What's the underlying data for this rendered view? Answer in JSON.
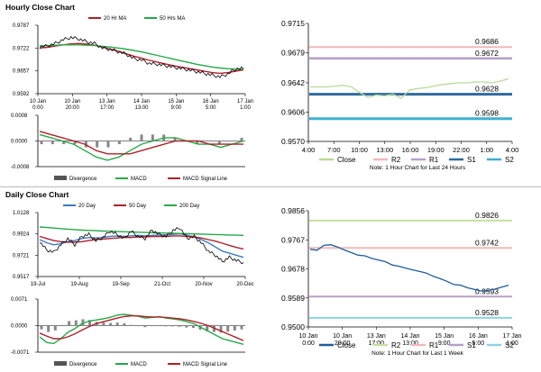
{
  "sections": {
    "hourly_title": "Hourly Close Chart",
    "daily_title": "Daily Close Chart"
  },
  "colors": {
    "close": "#b9d99a",
    "close_daily": "#1f5e9c",
    "ma20": "#b0202a",
    "ma50": "#27a84a",
    "ma200": "#27a84a",
    "ma20_daily": "#3f78c0",
    "r2": "#f2b8b8",
    "r1": "#b8a0c8",
    "s1": "#2f6aa0",
    "s2": "#3fb0d0",
    "r2_daily": "#c8e0a0",
    "r1_daily": "#f2b8b8",
    "s1_daily": "#b8a0c8",
    "s2_daily": "#8fd0e8",
    "macd": "#27a84a",
    "signal": "#b0202a",
    "divergence": "#888888"
  },
  "chart_data": [
    {
      "id": "hourly_price_ma",
      "type": "line",
      "legend": [
        "20 Hr MA",
        "50 Hrs MA"
      ],
      "y_ticks": [
        "0.9787",
        "0.9722",
        "0.9657",
        "0.9592"
      ],
      "ylim": [
        0.9592,
        0.9787
      ],
      "x_labels": [
        "10 Jan\n0:00",
        "10 Jan\n20:00",
        "13 Jan\n17:00",
        "14 Jan\n13:00",
        "15 Jan\n9:00",
        "16 Jan\n5:00",
        "17 Jan\n1:00"
      ],
      "series": [
        {
          "name": "Close",
          "values": [
            0.9725,
            0.9728,
            0.9735,
            0.9746,
            0.9752,
            0.9748,
            0.974,
            0.9735,
            0.9722,
            0.9718,
            0.9712,
            0.9705,
            0.9692,
            0.9688,
            0.9678,
            0.9676,
            0.9672,
            0.9668,
            0.9664,
            0.966,
            0.9655,
            0.965,
            0.9645,
            0.964,
            0.9648,
            0.9662,
            0.9664
          ]
        },
        {
          "name": "20 Hr MA",
          "values": [
            0.9722,
            0.9724,
            0.9728,
            0.9731,
            0.9734,
            0.9735,
            0.9733,
            0.973,
            0.9725,
            0.9719,
            0.9713,
            0.9706,
            0.9699,
            0.9693,
            0.9687,
            0.9682,
            0.9677,
            0.9672,
            0.9668,
            0.9664,
            0.966,
            0.9656,
            0.9652,
            0.965,
            0.9652,
            0.9656,
            0.966
          ]
        },
        {
          "name": "50 Hrs MA",
          "values": [
            0.9728,
            0.9729,
            0.973,
            0.9731,
            0.9731,
            0.9731,
            0.973,
            0.9729,
            0.9727,
            0.9725,
            0.9722,
            0.9719,
            0.9715,
            0.9711,
            0.9706,
            0.9701,
            0.9696,
            0.9691,
            0.9686,
            0.9681,
            0.9676,
            0.9672,
            0.9668,
            0.9665,
            0.9663,
            0.9662,
            0.9662
          ]
        }
      ]
    },
    {
      "id": "hourly_macd",
      "type": "bar",
      "legend": [
        "Divergence",
        "MACD",
        "MACD Signal Line"
      ],
      "y_ticks": [
        "0.0008",
        "0.0000",
        "-0.0008"
      ],
      "ylim": [
        -0.0008,
        0.0008
      ],
      "series": [
        {
          "name": "MACD",
          "values": [
            0.0002,
            0.0001,
            0.0,
            -0.0001,
            -0.0003,
            -0.0005,
            -0.0006,
            -0.0005,
            -0.0003,
            -0.0001,
            0.0,
            0.0001,
            0.0001,
            0.0,
            -0.0001,
            -0.0001,
            -0.0002,
            -0.0001,
            0.0
          ]
        },
        {
          "name": "MACD Signal Line",
          "values": [
            0.0003,
            0.0002,
            0.0001,
            0.0,
            -0.0001,
            -0.0003,
            -0.0004,
            -0.0004,
            -0.0004,
            -0.0003,
            -0.0002,
            -0.0001,
            0.0,
            0.0,
            0.0,
            -0.0001,
            -0.0001,
            -0.0001,
            -0.0001
          ]
        },
        {
          "name": "Divergence",
          "values": [
            -0.0001,
            -0.0001,
            -0.0001,
            -0.0001,
            -0.0002,
            -0.0002,
            -0.0002,
            -0.0001,
            0.0001,
            0.0002,
            0.0002,
            0.0002,
            0.0001,
            0.0,
            -0.0001,
            0.0,
            -0.0001,
            0.0,
            0.0001
          ]
        }
      ]
    },
    {
      "id": "hourly_levels",
      "type": "line",
      "y_ticks": [
        "0.9715",
        "0.9679",
        "0.9642",
        "0.9606",
        "0.9570"
      ],
      "ylim": [
        0.957,
        0.9715
      ],
      "x_labels": [
        "4:00",
        "7:00",
        "10:00",
        "13:00",
        "16:00",
        "19:00",
        "22:00",
        "1:00",
        "4:00"
      ],
      "legend": [
        "Close",
        "R2",
        "R1",
        "S1",
        "S2"
      ],
      "note": "Note: 1 Hour Chart for Last 24 Hours",
      "levels": [
        {
          "name": "R2",
          "value": 0.9686,
          "label": "0.9686"
        },
        {
          "name": "R1",
          "value": 0.9672,
          "label": "0.9672"
        },
        {
          "name": "S1",
          "value": 0.9628,
          "label": "0.9628"
        },
        {
          "name": "S2",
          "value": 0.9598,
          "label": "0.9598"
        }
      ],
      "series": [
        {
          "name": "Close",
          "values": [
            0.9637,
            0.9637,
            0.9637,
            0.9638,
            0.9639,
            0.9637,
            0.963,
            0.9624,
            0.9627,
            0.9626,
            0.9628,
            0.9623,
            0.9633,
            0.9635,
            0.9636,
            0.9638,
            0.964,
            0.9641,
            0.9642,
            0.9642,
            0.9643,
            0.9643,
            0.9642,
            0.9644,
            0.9647
          ]
        }
      ]
    },
    {
      "id": "daily_price_ma",
      "type": "line",
      "legend": [
        "20 Day",
        "50 Day",
        "200 Day"
      ],
      "y_ticks": [
        "1.0128",
        "0.9924",
        "0.9721",
        "0.9517"
      ],
      "ylim": [
        0.9517,
        1.0128
      ],
      "x_labels": [
        "19-Jul",
        "19-Aug",
        "19-Sep",
        "21-Oct",
        "20-Nov",
        "20-Dec"
      ],
      "series": [
        {
          "name": "Close",
          "values": [
            0.985,
            0.977,
            0.975,
            0.982,
            0.988,
            0.982,
            0.99,
            0.992,
            0.986,
            0.989,
            0.995,
            0.992,
            0.988,
            0.995,
            0.99,
            0.988,
            0.996,
            0.992,
            0.99,
            0.996,
            0.998,
            0.988,
            0.99,
            0.984,
            0.976,
            0.972,
            0.966,
            0.97,
            0.967,
            0.965
          ]
        },
        {
          "name": "20 Day",
          "values": [
            0.987,
            0.984,
            0.982,
            0.983,
            0.985,
            0.986,
            0.988,
            0.989,
            0.9885,
            0.989,
            0.99,
            0.9905,
            0.99,
            0.9905,
            0.991,
            0.9905,
            0.991,
            0.9915,
            0.9915,
            0.992,
            0.9925,
            0.991,
            0.9895,
            0.987,
            0.984,
            0.98,
            0.976,
            0.974,
            0.972,
            0.97
          ]
        },
        {
          "name": "50 Day",
          "values": [
            0.99,
            0.988,
            0.986,
            0.985,
            0.9845,
            0.9845,
            0.985,
            0.986,
            0.987,
            0.9875,
            0.988,
            0.9885,
            0.989,
            0.989,
            0.9895,
            0.9895,
            0.99,
            0.99,
            0.99,
            0.9905,
            0.9905,
            0.99,
            0.9895,
            0.9885,
            0.987,
            0.9855,
            0.9835,
            0.9815,
            0.9795,
            0.978
          ]
        },
        {
          "name": "200 Day",
          "values": [
            0.999,
            0.9985,
            0.998,
            0.9975,
            0.997,
            0.9965,
            0.996,
            0.9958,
            0.9955,
            0.9952,
            0.995,
            0.9948,
            0.9945,
            0.9942,
            0.994,
            0.9938,
            0.9936,
            0.9934,
            0.9932,
            0.993,
            0.9928,
            0.9926,
            0.9924,
            0.9922,
            0.992,
            0.9918,
            0.9916,
            0.9914,
            0.9912,
            0.991
          ]
        }
      ]
    },
    {
      "id": "daily_macd",
      "type": "bar",
      "legend": [
        "Divergence",
        "MACD",
        "MACD Signal Line"
      ],
      "y_ticks": [
        "0.0071",
        "0.0000",
        "-0.0071"
      ],
      "ylim": [
        -0.0071,
        0.0071
      ],
      "series": [
        {
          "name": "MACD",
          "values": [
            -0.003,
            -0.0045,
            -0.0048,
            -0.0035,
            -0.0018,
            -0.0008,
            0.0005,
            0.0012,
            0.0015,
            0.0018,
            0.0022,
            0.0028,
            0.003,
            0.0028,
            0.0025,
            0.002,
            0.0022,
            0.0024,
            0.002,
            0.0018,
            0.0015,
            0.001,
            0.0005,
            -0.0005,
            -0.0015,
            -0.0025,
            -0.0035,
            -0.004,
            -0.0045,
            -0.005
          ]
        },
        {
          "name": "MACD Signal Line",
          "values": [
            -0.002,
            -0.0028,
            -0.0035,
            -0.0035,
            -0.003,
            -0.0022,
            -0.0012,
            -0.0003,
            0.0005,
            0.001,
            0.0015,
            0.002,
            0.0024,
            0.0026,
            0.0026,
            0.0024,
            0.0023,
            0.0023,
            0.0022,
            0.002,
            0.0018,
            0.0015,
            0.0011,
            0.0006,
            0.0,
            -0.0008,
            -0.0016,
            -0.0024,
            -0.0032,
            -0.004
          ]
        },
        {
          "name": "Divergence",
          "values": [
            -0.001,
            -0.0017,
            -0.0013,
            0.0,
            0.0012,
            0.0014,
            0.0017,
            0.0015,
            0.001,
            0.0008,
            0.0007,
            0.0008,
            0.0006,
            0.0002,
            -0.0001,
            -0.0004,
            -0.0001,
            0.0001,
            -0.0002,
            -0.0002,
            -0.0003,
            -0.0005,
            -0.0006,
            -0.0011,
            -0.0015,
            -0.0017,
            -0.0019,
            -0.0016,
            -0.0013,
            -0.001
          ]
        }
      ]
    },
    {
      "id": "daily_levels",
      "type": "line",
      "y_ticks": [
        "0.9856",
        "0.9767",
        "0.9678",
        "0.9589",
        "0.9500"
      ],
      "ylim": [
        0.95,
        0.9856
      ],
      "x_labels": [
        "10 Jan\n0:00",
        "10 Jan\n20:00",
        "13 Jan\n17:00",
        "14 Jan\n13:00",
        "15 Jan\n9:00",
        "16 Jan\n5:00",
        "17 Jan\n1:00"
      ],
      "legend": [
        "Close",
        "R2",
        "R1",
        "S1",
        "S2"
      ],
      "note": "Note: 1 Hour Chart for Last 1 Week",
      "levels": [
        {
          "name": "R2",
          "value": 0.9826,
          "label": "0.9826"
        },
        {
          "name": "R1",
          "value": 0.9742,
          "label": "0.9742"
        },
        {
          "name": "S1",
          "value": 0.9593,
          "label": "0.9593"
        },
        {
          "name": "S2",
          "value": 0.9528,
          "label": "0.9528"
        }
      ],
      "series": [
        {
          "name": "Close",
          "values": [
            0.9738,
            0.9735,
            0.975,
            0.9752,
            0.9745,
            0.9736,
            0.9728,
            0.972,
            0.9718,
            0.971,
            0.9705,
            0.97,
            0.969,
            0.9686,
            0.968,
            0.9675,
            0.967,
            0.9665,
            0.9655,
            0.9648,
            0.964,
            0.963,
            0.9628,
            0.962,
            0.9615,
            0.961,
            0.9612,
            0.9616,
            0.9622,
            0.9628
          ]
        }
      ]
    }
  ]
}
